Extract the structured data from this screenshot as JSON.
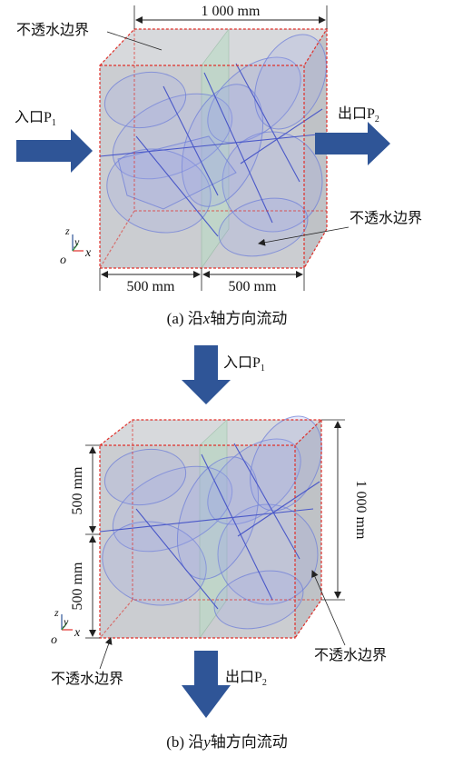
{
  "colors": {
    "arrow": "#2f5597",
    "cube_fill": "#c9ccd0",
    "boundary": "#e0302a",
    "fracture": "#6f7fd8",
    "midplane": "#b8dcc4"
  },
  "panel_a": {
    "top_dimension": "1 000 mm",
    "boundary_label_top": "不透水边界",
    "boundary_label_right": "不透水边界",
    "inlet": {
      "text": "入口P",
      "sub": "1"
    },
    "outlet": {
      "text": "出口P",
      "sub": "2"
    },
    "bottom_dimension_left": "500 mm",
    "bottom_dimension_right": "500 mm",
    "axes": {
      "z": "z",
      "y": "y",
      "o": "o",
      "x": "x"
    },
    "caption_prefix": "(a) 沿",
    "caption_axis": "x",
    "caption_suffix": "轴方向流动"
  },
  "panel_b": {
    "inlet": {
      "text": "入口P",
      "sub": "1"
    },
    "outlet": {
      "text": "出口P",
      "sub": "2"
    },
    "left_dimension_top": "500 mm",
    "left_dimension_bottom": "500 mm",
    "right_dimension": "1 000 mm",
    "boundary_label_right": "不透水边界",
    "boundary_label_left": "不透水边界",
    "axes": {
      "z": "z",
      "y": "y",
      "o": "o",
      "x": "x"
    },
    "caption_prefix": "(b) 沿",
    "caption_axis": "y",
    "caption_suffix": "轴方向流动"
  }
}
